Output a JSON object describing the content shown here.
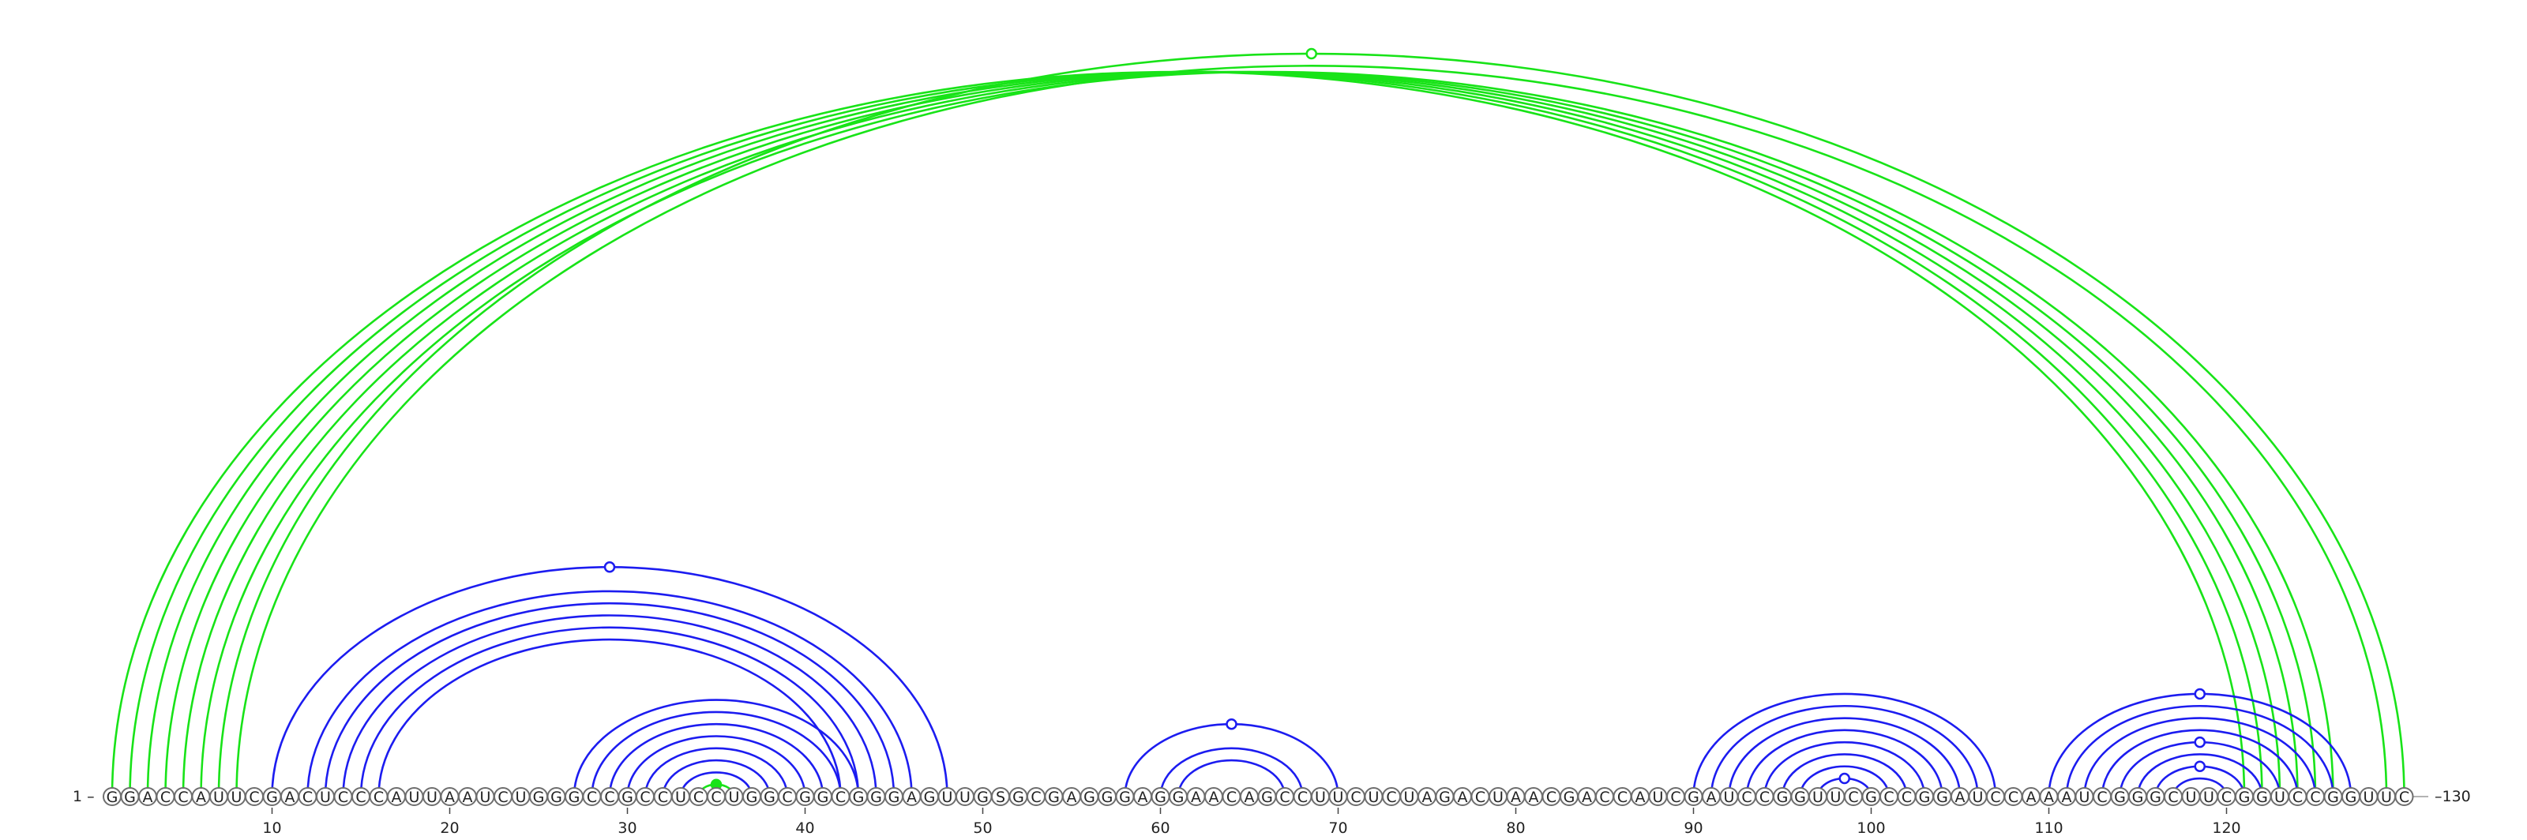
{
  "sequence": "GGACCAUUCGACUCCCAUUAAUCUGGGCCGCCUCCUGGCGGCGGGAGUUGSGCGAGGGAGGAACAGCCUUCUCUAGACUAACGACCAUCGAUCCGGUUCGCCGGAUCCAAAUCGGGCUUCGGUCCGGUUC",
  "start_label": "1 –",
  "end_label": "–130",
  "ticks": [
    "10",
    "20",
    "30",
    "40",
    "50",
    "60",
    "70",
    "80",
    "90",
    "100",
    "110",
    "120"
  ],
  "colors": {
    "green": "#18e318",
    "blue": "#1c1cf0"
  },
  "pairs_green": [
    [
      1,
      121
    ],
    [
      2,
      122
    ],
    [
      3,
      123
    ],
    [
      4,
      124
    ],
    [
      5,
      125
    ],
    [
      6,
      126
    ],
    [
      7,
      130
    ],
    [
      8,
      129
    ],
    [
      34,
      36
    ]
  ],
  "pairs_blue": [
    [
      10,
      48
    ],
    [
      12,
      46
    ],
    [
      13,
      45
    ],
    [
      14,
      44
    ],
    [
      15,
      43
    ],
    [
      16,
      42
    ],
    [
      27,
      43
    ],
    [
      28,
      42
    ],
    [
      29,
      41
    ],
    [
      30,
      40
    ],
    [
      31,
      39
    ],
    [
      32,
      38
    ],
    [
      33,
      37
    ],
    [
      58,
      70
    ],
    [
      60,
      68
    ],
    [
      61,
      67
    ],
    [
      90,
      107
    ],
    [
      91,
      106
    ],
    [
      92,
      105
    ],
    [
      93,
      104
    ],
    [
      94,
      103
    ],
    [
      95,
      102
    ],
    [
      96,
      101
    ],
    [
      97,
      100
    ],
    [
      110,
      127
    ],
    [
      111,
      126
    ],
    [
      112,
      125
    ],
    [
      113,
      124
    ],
    [
      114,
      123
    ],
    [
      115,
      122
    ],
    [
      116,
      121
    ],
    [
      117,
      120
    ]
  ],
  "markers": [
    {
      "color": "green",
      "pair": [
        7,
        130
      ],
      "filled": false
    },
    {
      "color": "blue",
      "pair": [
        10,
        48
      ],
      "filled": false
    },
    {
      "color": "green",
      "pair": [
        34,
        36
      ],
      "filled": true
    },
    {
      "color": "blue",
      "pair": [
        58,
        70
      ],
      "filled": false
    },
    {
      "color": "blue",
      "pair": [
        97,
        100
      ],
      "filled": false
    },
    {
      "color": "blue",
      "pair": [
        110,
        127
      ],
      "filled": false
    },
    {
      "color": "blue",
      "pair": [
        114,
        123
      ],
      "filled": false
    },
    {
      "color": "blue",
      "pair": [
        116,
        121
      ],
      "filled": false
    }
  ]
}
